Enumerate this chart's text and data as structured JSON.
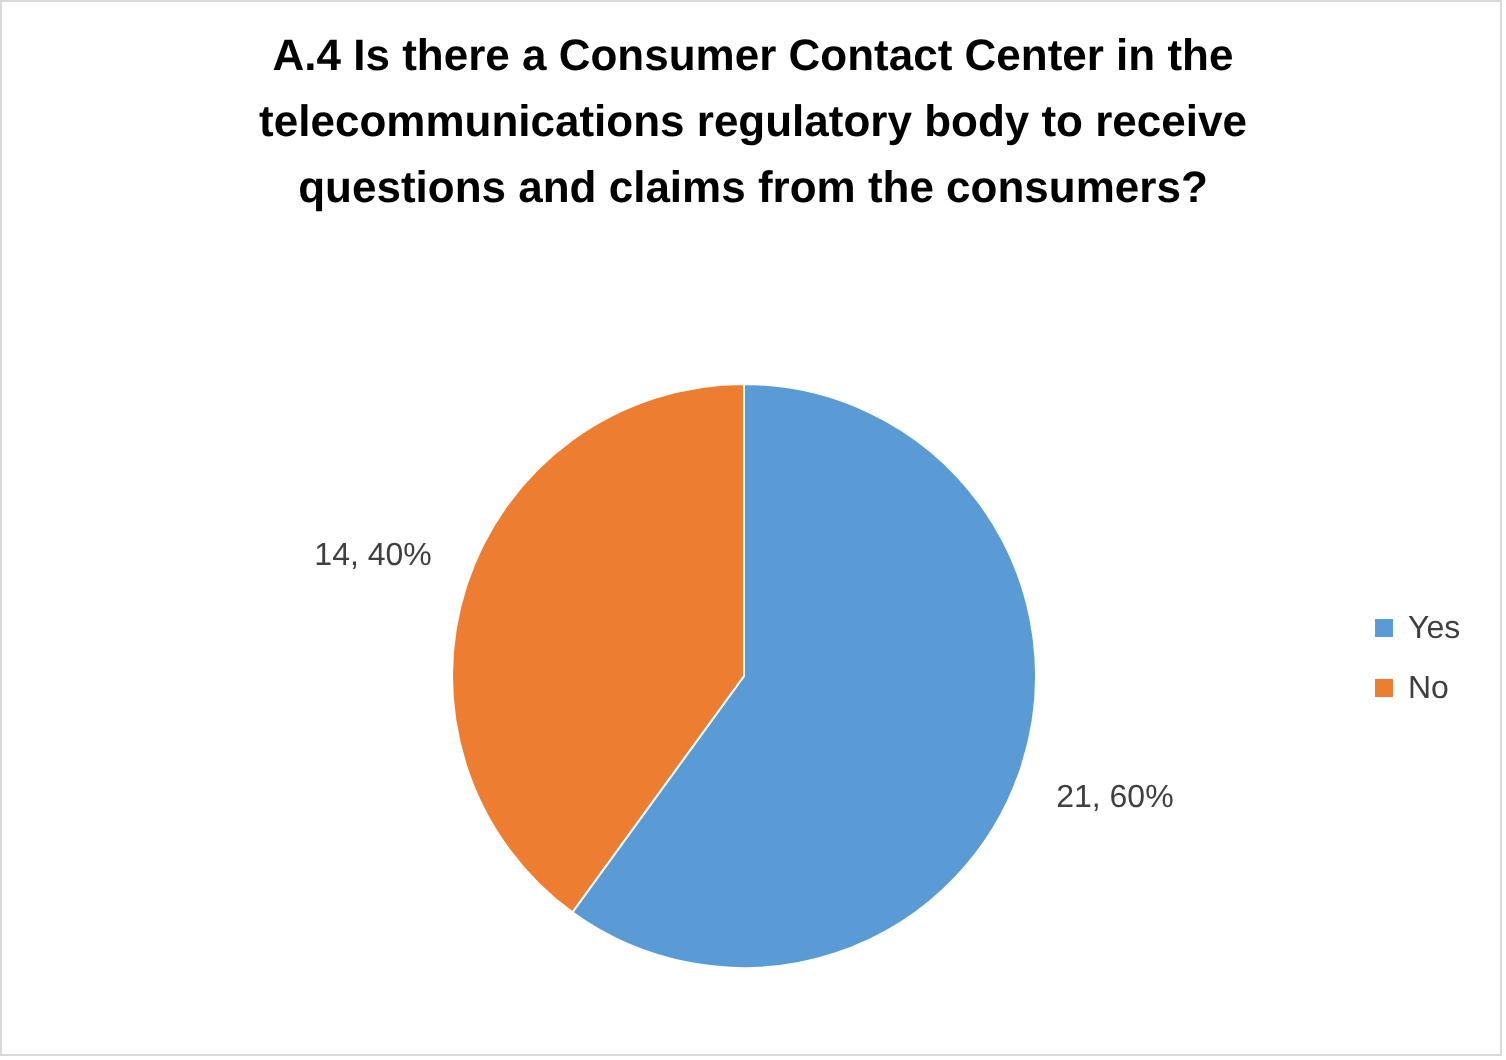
{
  "chart_data": {
    "type": "pie",
    "title": "A.4 Is there a Consumer Contact Center in the telecommunications regulatory body to receive questions and claims from the consumers?",
    "categories": [
      "Yes",
      "No"
    ],
    "values": [
      21,
      14
    ],
    "colors": [
      "#5b9bd5",
      "#ed7d31"
    ],
    "value_labels": [
      "21, 60%",
      "14, 40%"
    ],
    "legend": "right"
  }
}
